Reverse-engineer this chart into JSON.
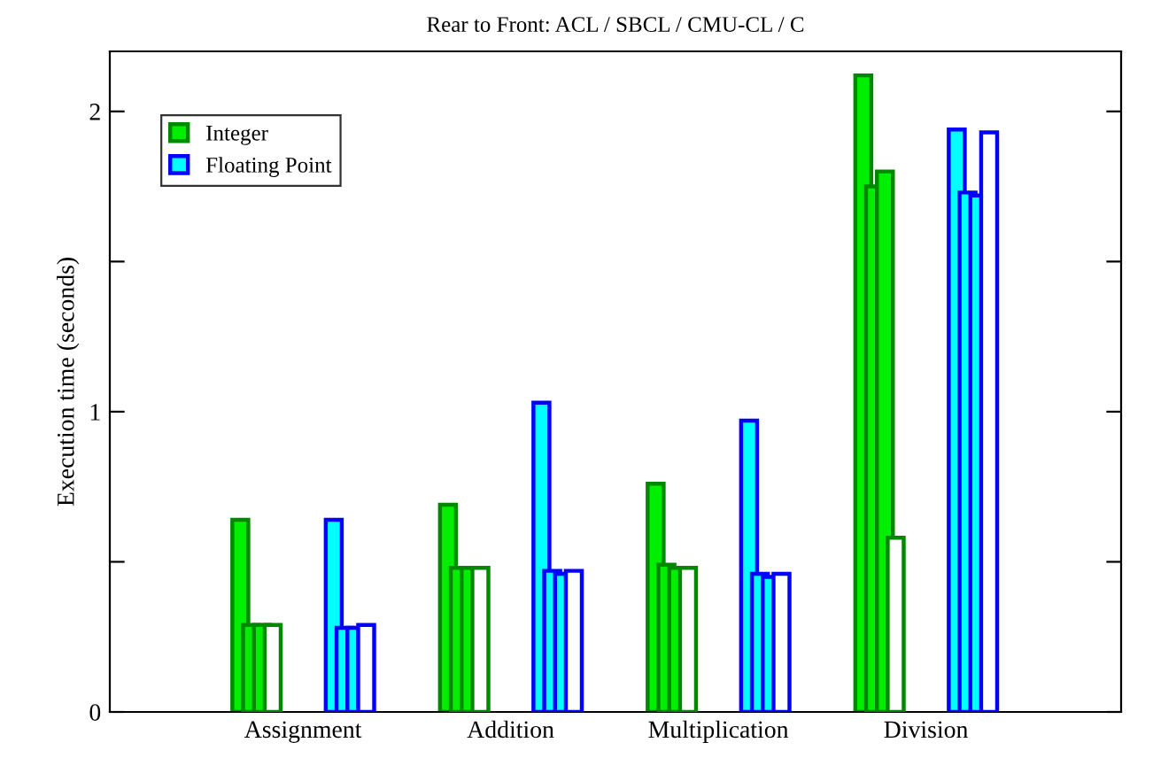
{
  "chart_data": {
    "type": "bar",
    "title": "Rear to Front: ACL / SBCL / CMU-CL / C",
    "ylabel": "Execution time (seconds)",
    "categories": [
      "Assignment",
      "Addition",
      "Multiplication",
      "Division"
    ],
    "series": [
      {
        "name": "Integer",
        "color": "#00ee00",
        "values": [
          0.64,
          0.69,
          0.76,
          2.12
        ]
      },
      {
        "color": "#00ee00",
        "values": [
          0.29,
          0.48,
          0.49,
          1.75
        ]
      },
      {
        "color": "#00ee00",
        "values": [
          0.29,
          0.48,
          0.48,
          1.8
        ]
      },
      {
        "color": "#ffffff",
        "values": [
          0.29,
          0.48,
          0.48,
          0.58
        ]
      },
      {
        "name": "Floating Point",
        "color": "#00ffff",
        "values": [
          0.64,
          1.03,
          0.97,
          1.94
        ]
      },
      {
        "color": "#00ffff",
        "values": [
          0.28,
          0.47,
          0.46,
          1.73
        ]
      },
      {
        "color": "#00ffff",
        "values": [
          0.28,
          0.46,
          0.45,
          1.72
        ]
      },
      {
        "color": "#ffffff",
        "values": [
          0.29,
          0.47,
          0.46,
          1.93
        ]
      }
    ],
    "ylim": [
      0,
      2.2
    ],
    "yticks": [
      0,
      {
        "value": 0.5,
        "label": null
      },
      1,
      {
        "value": 1.5,
        "label": null
      },
      2
    ],
    "legend": "top left",
    "grid": false
  }
}
